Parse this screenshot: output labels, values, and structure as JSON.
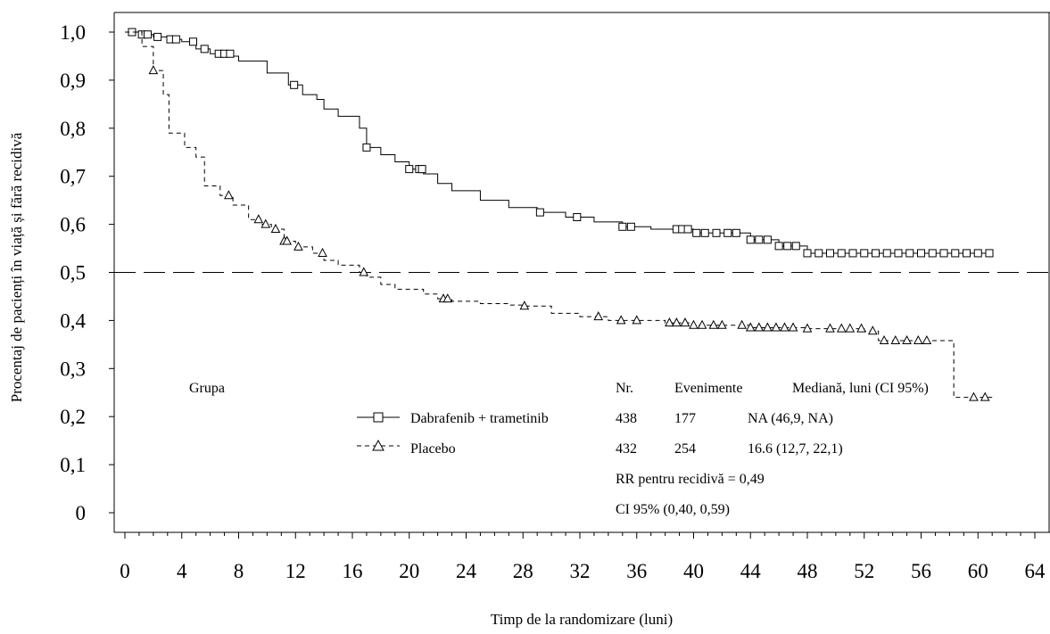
{
  "chart_data": {
    "type": "line",
    "title": "",
    "xlabel": "Timp de la randomizare (luni)",
    "ylabel": "Procentaj de pacienți în viață și fără recidivă",
    "xlim": [
      0,
      64
    ],
    "ylim": [
      0,
      1.0
    ],
    "x_ticks": [
      "0",
      "4",
      "8",
      "12",
      "16",
      "20",
      "24",
      "28",
      "32",
      "36",
      "40",
      "44",
      "48",
      "52",
      "56",
      "60",
      "64"
    ],
    "y_ticks": [
      "0",
      "0,1",
      "0,2",
      "0,3",
      "0,4",
      "0,5",
      "0,6",
      "0,7",
      "0,8",
      "0,9",
      "1,0"
    ],
    "reference_line": {
      "y": 0.5,
      "style": "dashed"
    },
    "series": [
      {
        "name": "Dabrafenib + trametinib",
        "marker": "square",
        "line_style": "solid",
        "points": [
          [
            0,
            1.0
          ],
          [
            1,
            0.995
          ],
          [
            2,
            0.99
          ],
          [
            3,
            0.985
          ],
          [
            4,
            0.98
          ],
          [
            5,
            0.965
          ],
          [
            6,
            0.955
          ],
          [
            7.5,
            0.95
          ],
          [
            8,
            0.94
          ],
          [
            10,
            0.915
          ],
          [
            11.5,
            0.89
          ],
          [
            12.5,
            0.87
          ],
          [
            13.5,
            0.86
          ],
          [
            14,
            0.84
          ],
          [
            15,
            0.825
          ],
          [
            16.5,
            0.8
          ],
          [
            17,
            0.76
          ],
          [
            18,
            0.745
          ],
          [
            19,
            0.73
          ],
          [
            20,
            0.715
          ],
          [
            21,
            0.705
          ],
          [
            22,
            0.685
          ],
          [
            23,
            0.67
          ],
          [
            25,
            0.65
          ],
          [
            27,
            0.635
          ],
          [
            29,
            0.625
          ],
          [
            31,
            0.615
          ],
          [
            33,
            0.605
          ],
          [
            35,
            0.595
          ],
          [
            37,
            0.59
          ],
          [
            40,
            0.582
          ],
          [
            44,
            0.568
          ],
          [
            46,
            0.555
          ],
          [
            48,
            0.54
          ],
          [
            61,
            0.54
          ]
        ],
        "censor_x": [
          0.5,
          1.2,
          1.6,
          2.3,
          3.2,
          3.6,
          4.8,
          5.6,
          6.6,
          7.0,
          7.4,
          11.9,
          17.0,
          20.0,
          20.7,
          20.9,
          29.2,
          31.8,
          35.0,
          35.6,
          38.8,
          39.2,
          39.6,
          40.2,
          40.8,
          41.6,
          42.4,
          43.0,
          44.0,
          44.6,
          45.2,
          46.0,
          46.6,
          47.2,
          48.0,
          48.8,
          49.6,
          50.4,
          51.2,
          52.0,
          52.8,
          53.6,
          54.4,
          55.2,
          56.0,
          56.8,
          57.6,
          58.4,
          59.2,
          60.0,
          60.8
        ]
      },
      {
        "name": "Placebo",
        "marker": "triangle",
        "line_style": "dashed",
        "points": [
          [
            0,
            1.0
          ],
          [
            1.2,
            0.97
          ],
          [
            2,
            0.92
          ],
          [
            2.7,
            0.87
          ],
          [
            3.1,
            0.79
          ],
          [
            4.2,
            0.76
          ],
          [
            5,
            0.74
          ],
          [
            5.6,
            0.68
          ],
          [
            6.7,
            0.66
          ],
          [
            7.6,
            0.64
          ],
          [
            8.7,
            0.61
          ],
          [
            9.5,
            0.6
          ],
          [
            10.3,
            0.59
          ],
          [
            11.2,
            0.565
          ],
          [
            12,
            0.553
          ],
          [
            13.2,
            0.54
          ],
          [
            14,
            0.525
          ],
          [
            15,
            0.515
          ],
          [
            16.5,
            0.5
          ],
          [
            17,
            0.49
          ],
          [
            18,
            0.475
          ],
          [
            19,
            0.465
          ],
          [
            21,
            0.455
          ],
          [
            22,
            0.445
          ],
          [
            23,
            0.44
          ],
          [
            25,
            0.435
          ],
          [
            27,
            0.432
          ],
          [
            28,
            0.43
          ],
          [
            30,
            0.415
          ],
          [
            32,
            0.408
          ],
          [
            34,
            0.4
          ],
          [
            38,
            0.395
          ],
          [
            40,
            0.39
          ],
          [
            44,
            0.385
          ],
          [
            48,
            0.383
          ],
          [
            52,
            0.378
          ],
          [
            53,
            0.358
          ],
          [
            58,
            0.358
          ],
          [
            58.3,
            0.24
          ],
          [
            61,
            0.24
          ]
        ],
        "censor_x": [
          2.0,
          7.3,
          9.4,
          9.9,
          10.6,
          11.2,
          11.4,
          12.2,
          13.9,
          16.8,
          22.4,
          22.7,
          28.1,
          33.3,
          34.9,
          36.0,
          38.3,
          38.8,
          39.4,
          40.0,
          40.6,
          41.4,
          42.0,
          43.4,
          44.0,
          44.6,
          45.2,
          45.8,
          46.4,
          47.0,
          48.0,
          49.6,
          50.4,
          51.0,
          51.8,
          52.6,
          53.4,
          54.2,
          55.0,
          55.8,
          56.4,
          59.7,
          60.5
        ]
      }
    ],
    "table": {
      "group_header": "Grupa",
      "headers": [
        "Nr.",
        "Evenimente",
        "Mediană, luni (CI 95%)"
      ],
      "rows": [
        {
          "label": "Dabrafenib + trametinib",
          "n": "438",
          "events": "177",
          "median": "NA (46,9, NA)"
        },
        {
          "label": "Placebo",
          "n": "432",
          "events": "254",
          "median": "16.6 (12,7, 22,1)"
        }
      ],
      "hr_text": "RR pentru recidivă = 0,49",
      "ci_text": "CI 95% (0,40, 0,59)"
    }
  }
}
